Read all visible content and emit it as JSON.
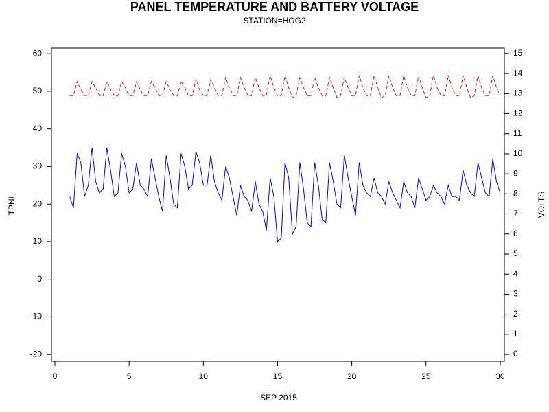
{
  "chart_data": {
    "type": "line",
    "title": "PANEL TEMPERATURE AND BATTERY VOLTAGE",
    "subtitle": "STATION=HOG2",
    "xlabel": "SEP 2015",
    "ylabel": "TPNL",
    "y2label": "VOLTS",
    "xlim": [
      -0.23,
      30.28
    ],
    "xticks": [
      0,
      5,
      10,
      15,
      20,
      25,
      30
    ],
    "ylim": [
      -21.8,
      61.5
    ],
    "yticks": [
      -20,
      -10,
      0,
      10,
      20,
      30,
      40,
      50,
      60
    ],
    "y2lim": [
      -0.34,
      15.27
    ],
    "y2ticks": [
      0,
      1,
      2,
      3,
      4,
      5,
      6,
      7,
      8,
      9,
      10,
      11,
      12,
      13,
      14,
      15
    ],
    "x": [
      1,
      1.25,
      1.5,
      1.75,
      2,
      2.25,
      2.5,
      2.75,
      3,
      3.25,
      3.5,
      3.75,
      4,
      4.25,
      4.5,
      4.75,
      5,
      5.25,
      5.5,
      5.75,
      6,
      6.25,
      6.5,
      6.75,
      7,
      7.25,
      7.5,
      7.75,
      8,
      8.25,
      8.5,
      8.75,
      9,
      9.25,
      9.5,
      9.75,
      10,
      10.25,
      10.5,
      10.75,
      11,
      11.25,
      11.5,
      11.75,
      12,
      12.25,
      12.5,
      12.75,
      13,
      13.25,
      13.5,
      13.75,
      14,
      14.25,
      14.5,
      14.75,
      15,
      15.25,
      15.5,
      15.75,
      16,
      16.25,
      16.5,
      16.75,
      17,
      17.25,
      17.5,
      17.75,
      18,
      18.25,
      18.5,
      18.75,
      19,
      19.25,
      19.5,
      19.75,
      20,
      20.25,
      20.5,
      20.75,
      21,
      21.25,
      21.5,
      21.75,
      22,
      22.25,
      22.5,
      22.75,
      23,
      23.25,
      23.5,
      23.75,
      24,
      24.25,
      24.5,
      24.75,
      25,
      25.25,
      25.5,
      25.75,
      26,
      26.25,
      26.5,
      26.75,
      27,
      27.25,
      27.5,
      27.75,
      28,
      28.25,
      28.5,
      28.75,
      29,
      29.25,
      29.5,
      29.75,
      30
    ],
    "series": [
      {
        "name": "TPNL",
        "color": "#0000ff",
        "dash": false,
        "values": [
          22,
          19,
          33.5,
          31,
          22,
          25,
          35,
          26,
          23,
          24,
          35,
          29,
          22,
          23,
          33.5,
          30,
          23,
          24,
          31,
          25,
          24,
          22,
          32,
          27,
          22,
          18,
          33,
          27,
          20,
          19,
          33.5,
          30,
          24,
          25,
          34,
          31,
          25,
          25,
          33,
          26,
          23,
          21,
          30,
          27,
          22,
          17,
          25,
          22,
          21,
          18,
          26,
          20,
          18,
          13,
          27,
          22,
          10,
          11,
          31,
          27,
          12,
          14,
          31,
          24,
          15,
          14,
          31,
          25,
          16,
          15,
          31,
          26,
          20,
          19,
          33,
          27,
          22,
          17,
          31,
          25,
          23,
          22,
          27,
          23,
          22,
          20,
          26,
          23,
          21,
          19,
          26,
          23,
          22,
          19,
          27,
          24,
          21,
          22,
          25,
          23,
          22,
          20,
          25,
          22,
          22,
          21,
          29,
          25,
          23,
          22,
          31,
          27,
          23,
          22,
          32,
          26,
          23
        ]
      },
      {
        "name": "VOLTS",
        "color": "#ff0000",
        "dash": true,
        "axis": "y2",
        "values": [
          12.9,
          12.9,
          13.6,
          13.2,
          12.9,
          12.9,
          13.6,
          13.3,
          12.9,
          12.9,
          13.6,
          13.2,
          12.9,
          12.9,
          13.6,
          13.3,
          12.9,
          12.9,
          13.6,
          13.2,
          12.9,
          12.9,
          13.6,
          13.3,
          12.9,
          12.9,
          13.6,
          13.2,
          12.9,
          12.9,
          13.6,
          13.3,
          12.9,
          12.9,
          13.7,
          13.2,
          12.9,
          12.9,
          13.7,
          13.3,
          12.9,
          12.9,
          13.8,
          13.3,
          12.9,
          12.9,
          13.8,
          13.3,
          12.9,
          12.9,
          13.8,
          13.3,
          12.9,
          12.9,
          13.9,
          13.3,
          12.9,
          12.9,
          13.9,
          13.3,
          12.8,
          12.9,
          13.8,
          13.3,
          12.9,
          12.9,
          13.8,
          13.3,
          12.9,
          12.9,
          13.8,
          13.3,
          12.8,
          12.9,
          13.8,
          13.3,
          12.9,
          12.9,
          13.9,
          13.3,
          12.9,
          12.9,
          13.9,
          13.3,
          12.8,
          12.9,
          13.9,
          13.3,
          12.9,
          12.9,
          13.9,
          13.3,
          12.9,
          12.9,
          13.9,
          13.3,
          12.8,
          12.9,
          13.9,
          13.3,
          12.9,
          12.9,
          13.9,
          13.3,
          12.9,
          12.9,
          13.9,
          13.3,
          12.8,
          12.9,
          13.9,
          13.3,
          12.9,
          12.9,
          13.9,
          13.3,
          12.9
        ]
      }
    ]
  }
}
